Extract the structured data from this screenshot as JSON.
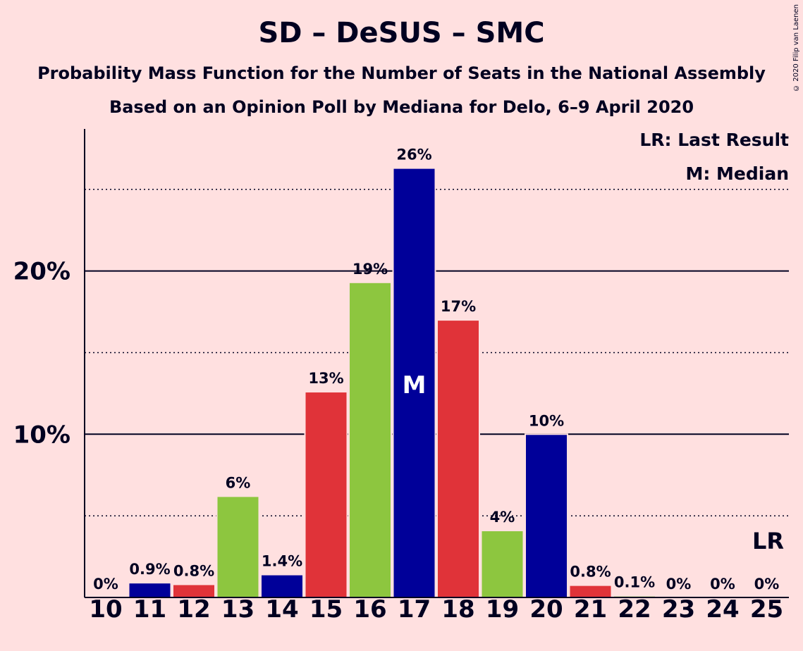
{
  "title": "SD – DeSUS – SMC",
  "subtitle1": "Probability Mass Function for the Number of Seats in the National Assembly",
  "subtitle2": "Based on an Opinion Poll by Mediana for Delo, 6–9 April 2020",
  "copyright": "© 2020 Filip van Laenen",
  "legend": {
    "last_result": "LR: Last Result",
    "median": "M: Median"
  },
  "colors": {
    "background": "#FFE0E0",
    "blue": "#000099",
    "red": "#E03339",
    "green": "#8DC63F",
    "text": "#000020"
  },
  "chart_data": {
    "type": "bar",
    "title": "SD – DeSUS – SMC",
    "categories": [
      "10",
      "11",
      "12",
      "13",
      "14",
      "15",
      "16",
      "17",
      "18",
      "19",
      "20",
      "21",
      "22",
      "23",
      "24",
      "25"
    ],
    "values": [
      0,
      0.9,
      0.8,
      6.2,
      1.4,
      12.6,
      19.3,
      26.3,
      17.0,
      4.1,
      10.0,
      0.75,
      0.1,
      0,
      0,
      0
    ],
    "labels": [
      "0%",
      "0.9%",
      "0.8%",
      "6%",
      "1.4%",
      "13%",
      "19%",
      "26%",
      "17%",
      "4%",
      "10%",
      "0.8%",
      "0.1%",
      "0%",
      "0%",
      "0%"
    ],
    "bar_colors": [
      "blue",
      "blue",
      "red",
      "green",
      "blue",
      "red",
      "green",
      "blue",
      "red",
      "green",
      "blue",
      "red",
      "green",
      "blue",
      "red",
      "green"
    ],
    "ylim": [
      0,
      28.7
    ],
    "yticks": [
      {
        "value": 10,
        "label": "10%"
      },
      {
        "value": 20,
        "label": "20%"
      }
    ],
    "dotted_gridlines": [
      5,
      15,
      25
    ],
    "median": {
      "category": "17",
      "label": "M"
    },
    "last_result": {
      "category": "25",
      "label": "LR"
    }
  }
}
